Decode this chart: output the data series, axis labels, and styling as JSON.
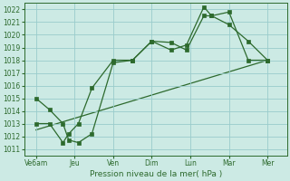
{
  "background_color": "#cceae4",
  "grid_color": "#99cccc",
  "line_color": "#2d6a2d",
  "marker_color": "#2d6a2d",
  "xlabel": "Pression niveau de la mer( hPa )",
  "ylim": [
    1010.5,
    1022.5
  ],
  "yticks": [
    1011,
    1012,
    1013,
    1014,
    1015,
    1016,
    1017,
    1018,
    1019,
    1020,
    1021,
    1022
  ],
  "x_labels": [
    "Ve6am",
    "Jeu",
    "Ven",
    "Dim",
    "Lun",
    "Mar",
    "Mer"
  ],
  "x_positions": [
    0,
    1,
    2,
    3,
    4,
    5,
    6
  ],
  "xlim": [
    -0.3,
    6.5
  ],
  "series1_x": [
    0,
    0.35,
    0.7,
    0.85,
    1.1,
    1.45,
    2.0,
    2.5,
    3.0,
    3.5,
    3.9,
    4.35,
    4.55,
    5.0,
    5.5,
    6.0
  ],
  "series1_y": [
    1015.0,
    1014.1,
    1013.0,
    1011.7,
    1011.5,
    1012.2,
    1017.8,
    1018.0,
    1019.5,
    1019.4,
    1018.8,
    1021.5,
    1021.5,
    1020.8,
    1019.5,
    1018.0
  ],
  "series2_x": [
    0,
    0.35,
    0.7,
    0.85,
    1.1,
    1.45,
    2.0,
    2.5,
    3.0,
    3.5,
    3.9,
    4.35,
    4.55,
    5.0,
    5.5,
    6.0
  ],
  "series2_y": [
    1013.0,
    1013.0,
    1011.5,
    1012.2,
    1013.0,
    1015.8,
    1018.0,
    1018.0,
    1019.5,
    1018.8,
    1019.2,
    1022.2,
    1021.5,
    1021.8,
    1018.0,
    1018.0
  ],
  "trend_x": [
    0,
    6.0
  ],
  "trend_y": [
    1012.5,
    1018.0
  ]
}
